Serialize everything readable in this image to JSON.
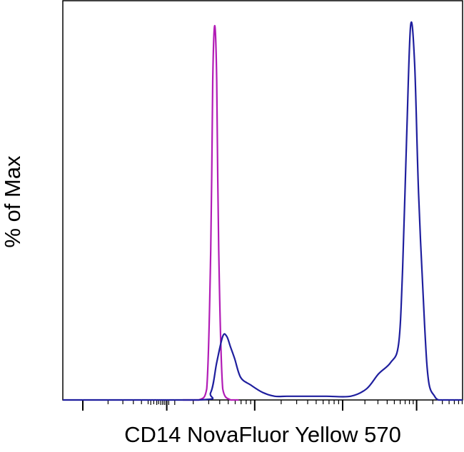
{
  "chart_data": {
    "type": "line",
    "title": "",
    "xlabel": "CD14 NovaFluor Yellow 570",
    "ylabel": "% of Max",
    "x_scale": "biexponential",
    "x_tick_labels": [],
    "y_tick_labels": [],
    "grid": false,
    "legend": "none",
    "ylim": [
      0,
      100
    ],
    "series": [
      {
        "color": "#b21cb6",
        "x": [
          0.3,
          0.34,
          0.36,
          0.37,
          0.375,
          0.38,
          0.385,
          0.39,
          0.4,
          0.42,
          0.44
        ],
        "y": [
          0,
          0,
          3,
          40,
          85,
          100,
          85,
          40,
          3,
          0,
          0
        ]
      },
      {
        "color": "#1f1f9e",
        "x": [
          0.0,
          0.34,
          0.37,
          0.385,
          0.4,
          0.41,
          0.42,
          0.43,
          0.445,
          0.47,
          0.5,
          0.53,
          0.56,
          0.6,
          0.66,
          0.72,
          0.76,
          0.79,
          0.82,
          0.84,
          0.85,
          0.86,
          0.87,
          0.88,
          0.89,
          0.905,
          0.915,
          0.93,
          0.94,
          0.95,
          0.97,
          1.0
        ],
        "y": [
          0,
          0,
          2,
          10,
          17,
          17,
          14,
          11,
          6,
          4,
          2,
          1,
          1,
          1,
          1,
          1,
          3,
          7,
          10,
          15,
          35,
          70,
          100,
          90,
          55,
          20,
          5,
          1,
          0,
          0,
          0,
          0
        ]
      }
    ]
  }
}
